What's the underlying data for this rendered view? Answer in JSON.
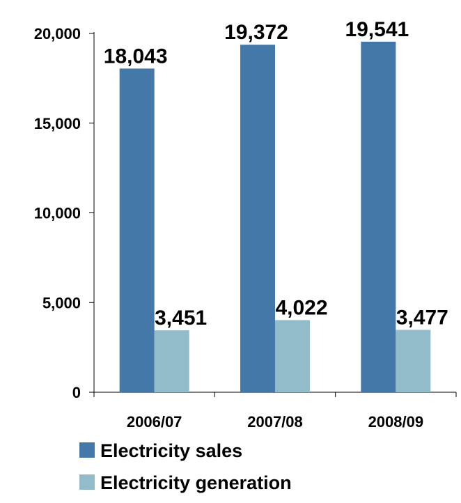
{
  "chart_data": {
    "type": "bar",
    "title": "",
    "xlabel": "",
    "ylabel": "",
    "categories": [
      "2006/07",
      "2007/08",
      "2008/09"
    ],
    "series": [
      {
        "name": "Electricity sales",
        "values": [
          18043,
          19372,
          19541
        ],
        "labels": [
          "18,043",
          "19,372",
          "19,541"
        ],
        "color": "#4478A8"
      },
      {
        "name": "Electricity generation",
        "values": [
          3451,
          4022,
          3477
        ],
        "labels": [
          "3,451",
          "4,022",
          "3,477"
        ],
        "color": "#93BCCB"
      }
    ],
    "ylim": [
      0,
      20000
    ],
    "yticks": [
      0,
      5000,
      10000,
      15000,
      20000
    ],
    "ytick_labels": [
      "0",
      "5,000",
      "10,000",
      "15,000",
      "20,000"
    ],
    "grid": false,
    "legend_position": "bottom-left"
  }
}
